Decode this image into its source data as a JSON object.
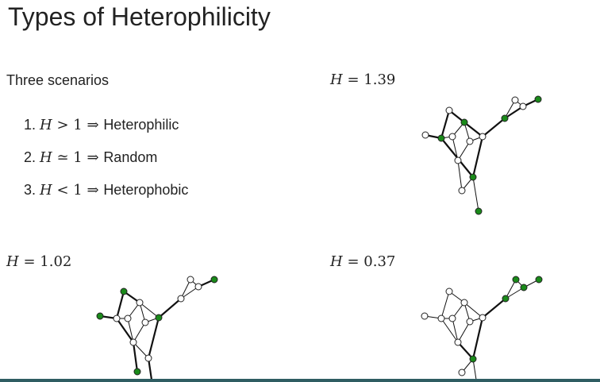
{
  "title": "Types of Heterophilicity",
  "intro": "Three scenarios",
  "scenarios": [
    {
      "num": "1.",
      "lhs": "H",
      "op": ">",
      "rhs": "1",
      "arrow": "⇒",
      "label": "Heterophilic"
    },
    {
      "num": "2.",
      "lhs": "H",
      "op": "≃",
      "rhs": "1",
      "arrow": "⇒",
      "label": "Random"
    },
    {
      "num": "3.",
      "lhs": "H",
      "op": "<",
      "rhs": "1",
      "arrow": "⇒",
      "label": "Heterophobic"
    }
  ],
  "graphs": [
    {
      "name": "graph-h-1-39",
      "var": "H",
      "eq": "=",
      "value": "1.39"
    },
    {
      "name": "graph-h-1-02",
      "var": "H",
      "eq": "=",
      "value": "1.02"
    },
    {
      "name": "graph-h-0-37",
      "var": "H",
      "eq": "=",
      "value": "0.37"
    }
  ],
  "colors": {
    "highlight_node": "#1a8a1a",
    "plain_node": "#ffffff",
    "edge": "#111111",
    "bottom_bar": "#2f5d62"
  }
}
